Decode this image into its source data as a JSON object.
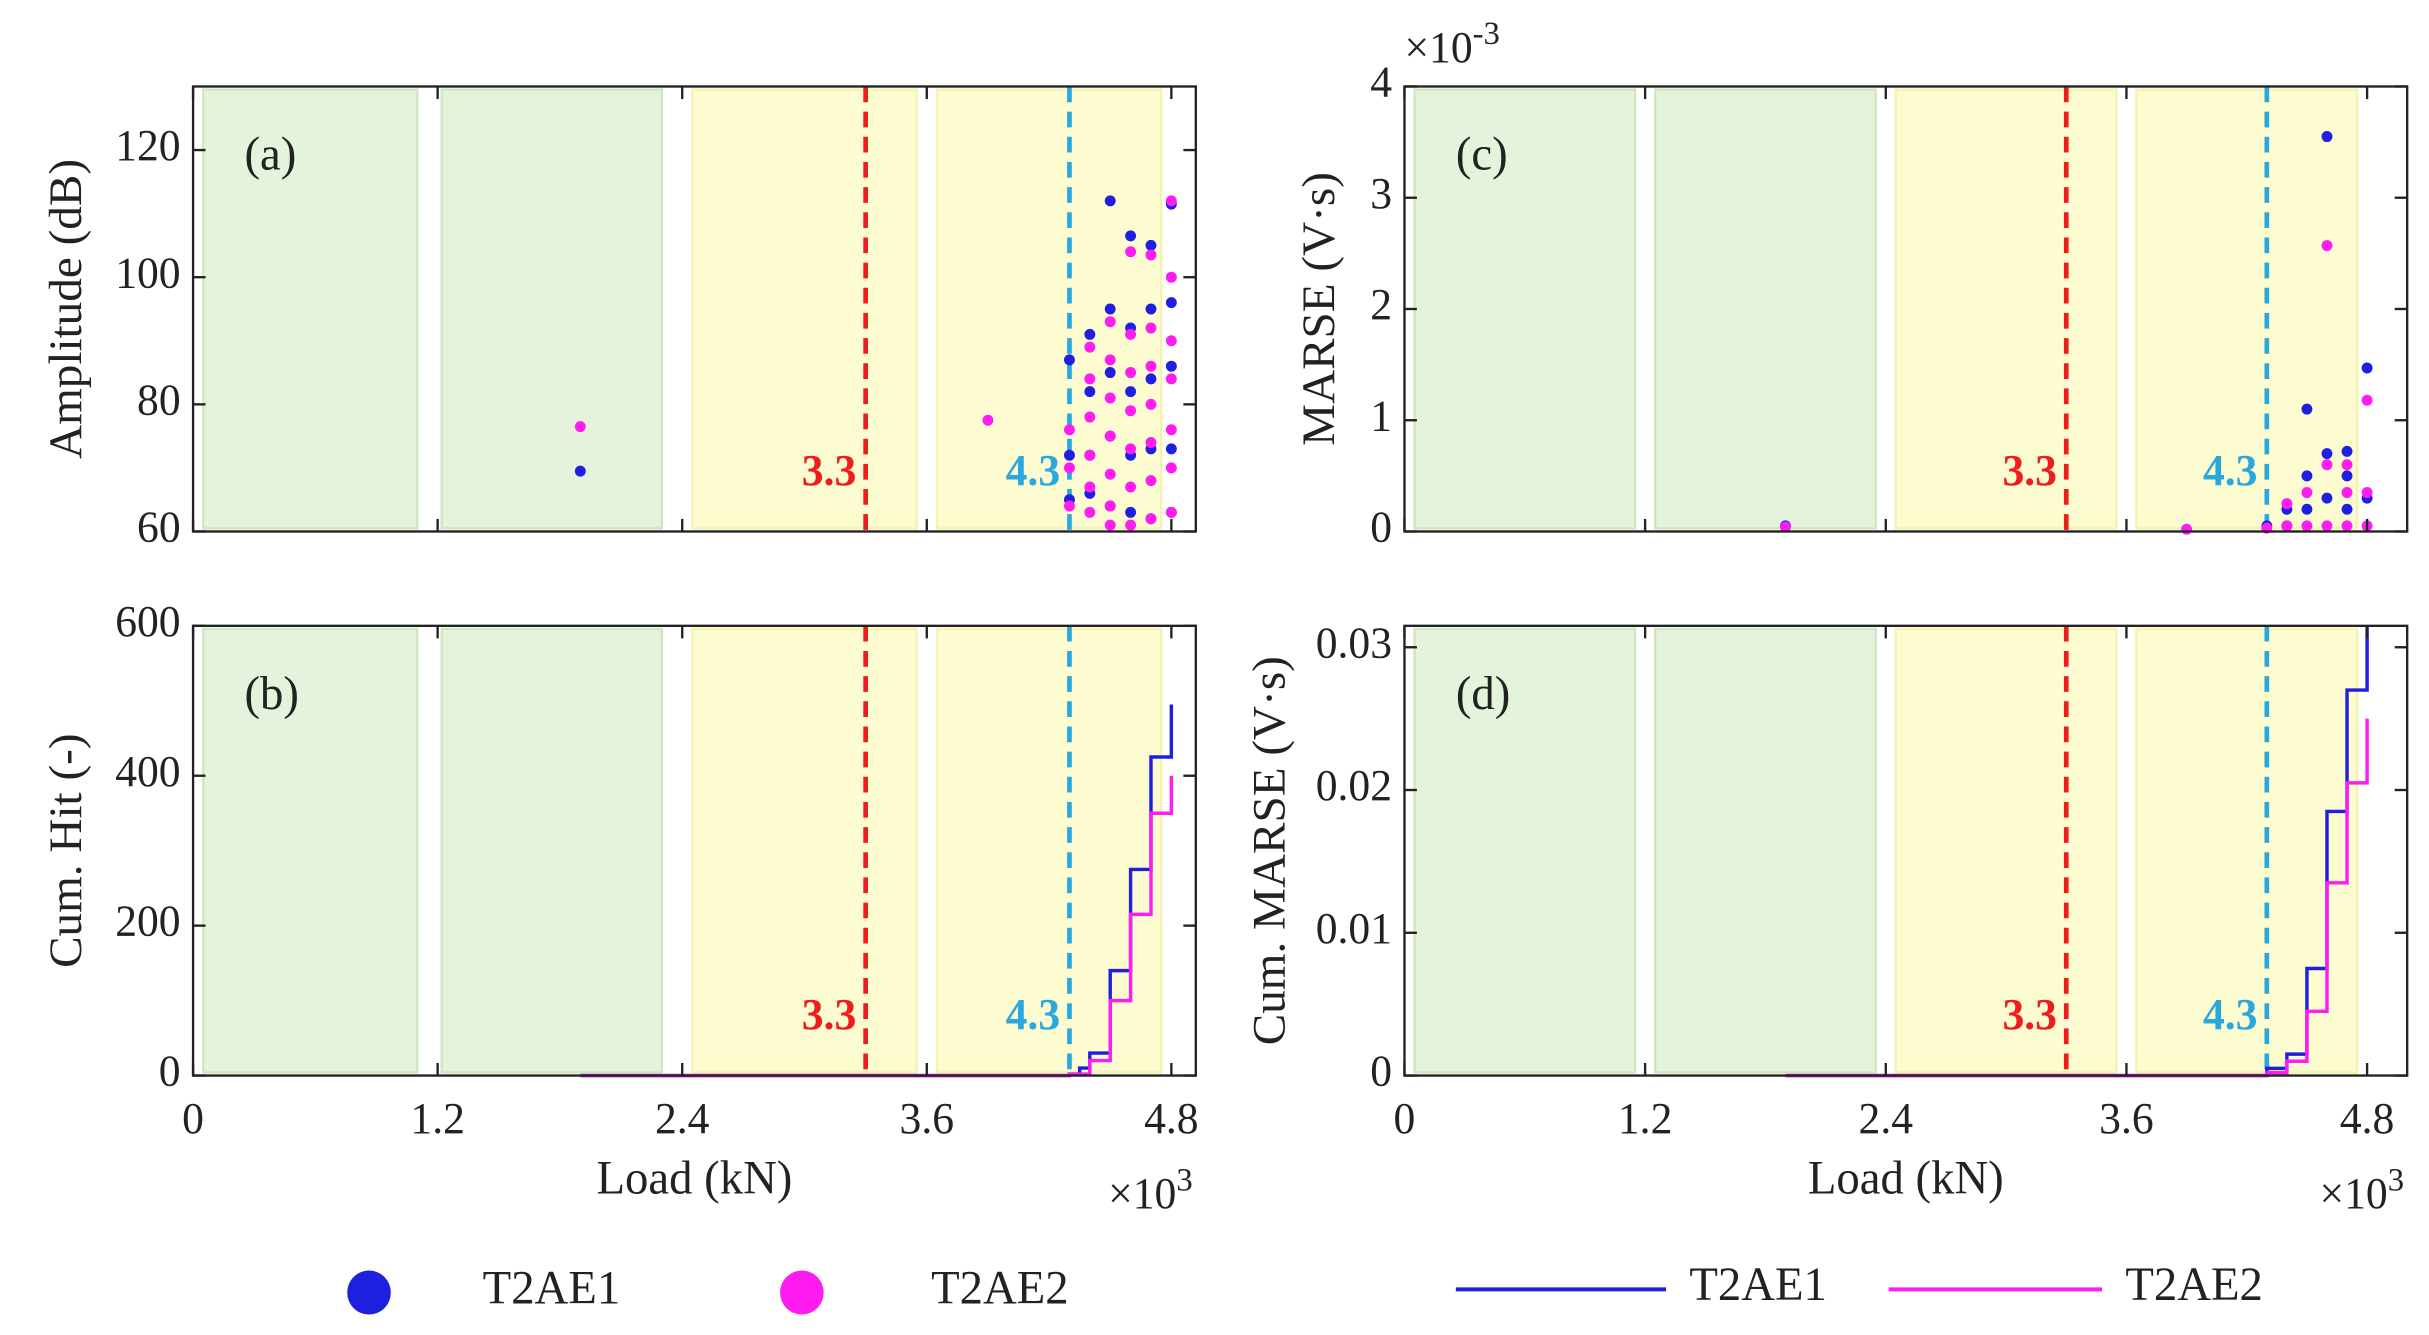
{
  "chart_data": [
    {
      "type": "scatter",
      "panel": "(a)",
      "ylabel": "Amplitude (dB)",
      "xlim": [
        0,
        4.92
      ],
      "ylim": [
        60,
        130
      ],
      "xticks": [
        0,
        1.2,
        2.4,
        3.6,
        4.8
      ],
      "yticks": [
        60,
        80,
        100,
        120
      ],
      "xticklabels": false,
      "regions": [
        {
          "x": [
            0.05,
            1.1
          ],
          "color": "#e5f3dc"
        },
        {
          "x": [
            1.22,
            2.3
          ],
          "color": "#e5f3dc"
        },
        {
          "x": [
            2.45,
            3.55
          ],
          "color": "#fdfbd0"
        },
        {
          "x": [
            3.65,
            4.75
          ],
          "color": "#fdfbd0"
        }
      ],
      "vlines": [
        {
          "x": 3.3,
          "label": "3.3",
          "color": "#ee1c1c"
        },
        {
          "x": 4.3,
          "label": "4.3",
          "color": "#29a8e0"
        }
      ],
      "series": [
        {
          "name": "T2AE1",
          "color": "#1f1fe0",
          "x": [
            1.9,
            4.3,
            4.3,
            4.3,
            4.4,
            4.4,
            4.4,
            4.4,
            4.5,
            4.5,
            4.5,
            4.5,
            4.5,
            4.6,
            4.6,
            4.6,
            4.6,
            4.6,
            4.7,
            4.7,
            4.7,
            4.7,
            4.7,
            4.8,
            4.8,
            4.8,
            4.8,
            4.8
          ],
          "y": [
            69.5,
            87,
            72,
            65,
            91,
            82,
            72,
            66,
            112,
            95,
            85,
            75,
            64,
            106.5,
            92,
            82,
            72,
            63,
            105,
            95,
            84,
            73,
            62,
            111.5,
            96,
            86,
            73,
            63
          ]
        },
        {
          "name": "T2AE2",
          "color": "#ff1cf0",
          "x": [
            1.9,
            3.9,
            4.3,
            4.3,
            4.3,
            4.4,
            4.4,
            4.4,
            4.4,
            4.4,
            4.4,
            4.5,
            4.5,
            4.5,
            4.5,
            4.5,
            4.5,
            4.5,
            4.6,
            4.6,
            4.6,
            4.6,
            4.6,
            4.6,
            4.6,
            4.7,
            4.7,
            4.7,
            4.7,
            4.7,
            4.7,
            4.7,
            4.8,
            4.8,
            4.8,
            4.8,
            4.8,
            4.8,
            4.8
          ],
          "y": [
            76.5,
            77.5,
            76,
            70,
            64,
            89,
            84,
            78,
            72,
            67,
            63,
            93,
            87,
            81,
            75,
            69,
            64,
            61,
            104,
            91,
            85,
            79,
            73,
            67,
            61,
            103.5,
            92,
            86,
            80,
            74,
            68,
            62,
            112,
            100,
            90,
            84,
            76,
            70,
            63
          ]
        }
      ]
    },
    {
      "type": "line",
      "step": "post",
      "panel": "(b)",
      "ylabel": "Cum. Hit (-)",
      "xlabel": "Load (kN)",
      "x_multiplier": {
        "base": "×10",
        "exponent": "3"
      },
      "xlim": [
        0,
        4.92
      ],
      "ylim": [
        0,
        600
      ],
      "xticks": [
        0,
        1.2,
        2.4,
        3.6,
        4.8
      ],
      "yticks": [
        0,
        200,
        400,
        600
      ],
      "regions": [
        {
          "x": [
            0.05,
            1.1
          ],
          "color": "#e5f3dc"
        },
        {
          "x": [
            1.22,
            2.3
          ],
          "color": "#e5f3dc"
        },
        {
          "x": [
            2.45,
            3.55
          ],
          "color": "#fdfbd0"
        },
        {
          "x": [
            3.65,
            4.75
          ],
          "color": "#fdfbd0"
        }
      ],
      "vlines": [
        {
          "x": 3.3,
          "label": "3.3",
          "color": "#ee1c1c"
        },
        {
          "x": 4.3,
          "label": "4.3",
          "color": "#29a8e0"
        }
      ],
      "series": [
        {
          "name": "T2AE1",
          "color": "#1f1fe0",
          "x": [
            1.9,
            4.3,
            4.35,
            4.4,
            4.5,
            4.6,
            4.7,
            4.8,
            4.8
          ],
          "values": [
            0,
            2,
            10,
            30,
            140,
            275,
            425,
            440,
            495
          ]
        },
        {
          "name": "T2AE2",
          "color": "#ff1cf0",
          "x": [
            1.9,
            4.3,
            4.4,
            4.5,
            4.6,
            4.7,
            4.8,
            4.8
          ],
          "values": [
            0,
            2,
            20,
            100,
            215,
            350,
            365,
            400
          ]
        }
      ]
    },
    {
      "type": "scatter",
      "panel": "(c)",
      "ylabel": "MARSE (V·s)",
      "y_multiplier": {
        "base": "×10",
        "exponent": "-3"
      },
      "xlim": [
        0,
        5
      ],
      "ylim": [
        0,
        4
      ],
      "xticks": [
        0,
        1.2,
        2.4,
        3.6,
        4.8
      ],
      "yticks": [
        0,
        1,
        2,
        3,
        4
      ],
      "xticklabels": false,
      "regions": [
        {
          "x": [
            0.05,
            1.15
          ],
          "color": "#e5f3dc"
        },
        {
          "x": [
            1.25,
            2.35
          ],
          "color": "#e5f3dc"
        },
        {
          "x": [
            2.45,
            3.55
          ],
          "color": "#fdfbd0"
        },
        {
          "x": [
            3.65,
            4.75
          ],
          "color": "#fdfbd0"
        }
      ],
      "vlines": [
        {
          "x": 3.3,
          "label": "3.3",
          "color": "#ee1c1c"
        },
        {
          "x": 4.3,
          "label": "4.3",
          "color": "#29a8e0"
        }
      ],
      "series": [
        {
          "color": "#1f1fe0",
          "x": [
            1.9,
            4.3,
            4.4,
            4.4,
            4.5,
            4.5,
            4.5,
            4.6,
            4.6,
            4.6,
            4.7,
            4.7,
            4.7,
            4.8,
            4.8
          ],
          "y": [
            0.05,
            0.05,
            0.2,
            0.05,
            1.1,
            0.5,
            0.2,
            3.55,
            0.7,
            0.3,
            0.72,
            0.5,
            0.2,
            1.47,
            0.3
          ]
        },
        {
          "color": "#ff1cf0",
          "x": [
            1.9,
            3.9,
            4.3,
            4.4,
            4.4,
            4.5,
            4.5,
            4.6,
            4.6,
            4.6,
            4.7,
            4.7,
            4.7,
            4.8,
            4.8,
            4.8
          ],
          "y": [
            0.04,
            0.02,
            0.03,
            0.25,
            0.05,
            0.35,
            0.05,
            2.57,
            0.6,
            0.05,
            0.6,
            0.35,
            0.05,
            1.18,
            0.35,
            0.05
          ]
        }
      ]
    },
    {
      "type": "line",
      "step": "post",
      "panel": "(d)",
      "ylabel": "Cum. MARSE (V·s)",
      "xlabel": "Load (kN)",
      "x_multiplier": {
        "base": "×10",
        "exponent": "3"
      },
      "xlim": [
        0,
        5
      ],
      "ylim": [
        0,
        0.0315
      ],
      "xticks": [
        0,
        1.2,
        2.4,
        3.6,
        4.8
      ],
      "yticks": [
        0,
        0.01,
        0.02,
        0.03
      ],
      "regions": [
        {
          "x": [
            0.05,
            1.15
          ],
          "color": "#e5f3dc"
        },
        {
          "x": [
            1.25,
            2.35
          ],
          "color": "#e5f3dc"
        },
        {
          "x": [
            2.45,
            3.55
          ],
          "color": "#fdfbd0"
        },
        {
          "x": [
            3.65,
            4.75
          ],
          "color": "#fdfbd0"
        }
      ],
      "vlines": [
        {
          "x": 3.3,
          "label": "3.3",
          "color": "#ee1c1c"
        },
        {
          "x": 4.3,
          "label": "4.3",
          "color": "#29a8e0"
        }
      ],
      "series": [
        {
          "color": "#1f1fe0",
          "x": [
            1.9,
            4.3,
            4.4,
            4.5,
            4.6,
            4.7,
            4.8
          ],
          "values": [
            0,
            0.0005,
            0.0015,
            0.0075,
            0.0185,
            0.027,
            0.0315
          ]
        },
        {
          "color": "#ff1cf0",
          "x": [
            1.9,
            4.3,
            4.4,
            4.5,
            4.6,
            4.7,
            4.8
          ],
          "values": [
            0,
            0.0002,
            0.001,
            0.0045,
            0.0135,
            0.0205,
            0.025
          ]
        }
      ]
    }
  ]
}
